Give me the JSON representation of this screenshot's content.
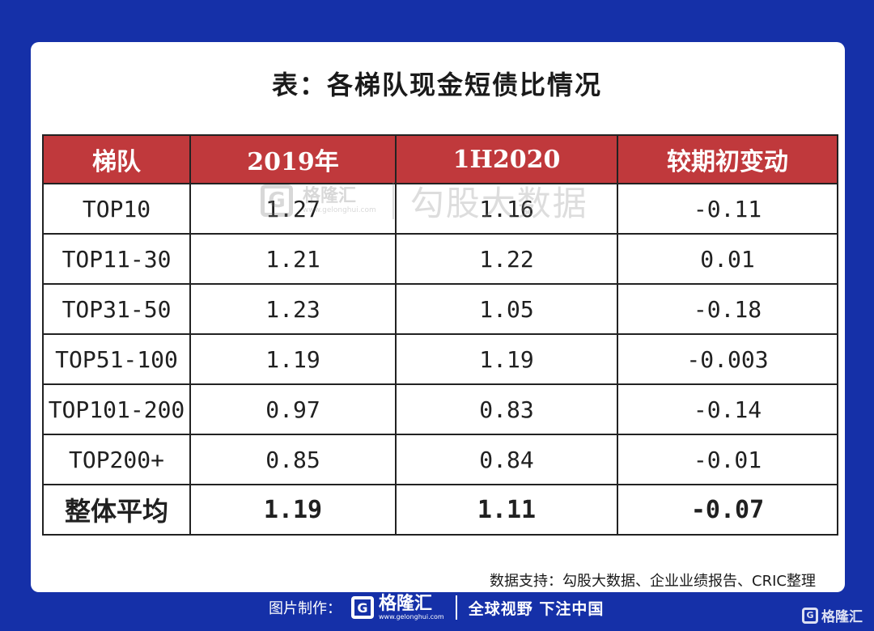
{
  "title": "表：各梯队现金短债比情况",
  "table": {
    "headers": [
      "梯队",
      "2019年",
      "1H2020",
      "较期初变动"
    ],
    "rows": [
      [
        "TOP10",
        "1.27",
        "1.16",
        "-0.11"
      ],
      [
        "TOP11-30",
        "1.21",
        "1.22",
        "0.01"
      ],
      [
        "TOP31-50",
        "1.23",
        "1.05",
        "-0.18"
      ],
      [
        "TOP51-100",
        "1.19",
        "1.19",
        "-0.003"
      ],
      [
        "TOP101-200",
        "0.97",
        "0.83",
        "-0.14"
      ],
      [
        "TOP200+",
        "0.85",
        "0.84",
        "-0.01"
      ]
    ],
    "total": [
      "整体平均",
      "1.19",
      "1.11",
      "-0.07"
    ]
  },
  "watermark": {
    "logo_glyph": "G",
    "brand": "格隆汇",
    "brand_url": "www.gelonghui.com",
    "text": "勾股大数据"
  },
  "source": "数据支持：勾股大数据、企业业绩报告、CRIC整理",
  "footer": {
    "made_by": "图片制作：",
    "logo_glyph": "G",
    "brand": "格隆汇",
    "brand_url": "www.gelonghui.com",
    "slogan": "全球视野 下注中国"
  },
  "corner_brand": "格隆汇",
  "colors": {
    "background": "#1530a8",
    "header": "#c0393c"
  }
}
